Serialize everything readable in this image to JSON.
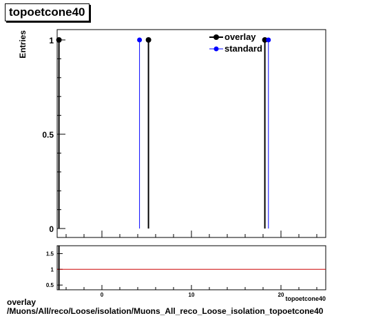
{
  "chart_data": {
    "type": "scatter",
    "title": "topoetcone40",
    "ylabel": "Entries",
    "xlabel": "topoetcone40",
    "xlim": [
      -5,
      25
    ],
    "ylim": [
      0,
      1.05
    ],
    "grid": false,
    "legend_position": "top-right",
    "series": [
      {
        "name": "overlay",
        "color": "#000000",
        "marker": "circle",
        "x": [
          -4.8,
          5.2,
          18.2
        ],
        "y": [
          1,
          1,
          1
        ]
      },
      {
        "name": "standard",
        "color": "#0000ff",
        "marker": "circle",
        "x": [
          4.2,
          18.6
        ],
        "y": [
          1,
          1
        ]
      }
    ],
    "ratio_panel": {
      "ylim": [
        0.35,
        1.75
      ],
      "reference_y": 1,
      "reference_color": "#cc0000",
      "yticks": [
        "0.5",
        "1",
        "1.5"
      ],
      "xticks": [
        "0",
        "10",
        "20"
      ]
    },
    "yticks": [
      "0",
      "0.5",
      "1"
    ]
  },
  "caption": {
    "line1": "overlay",
    "line2": "/Muons/All/reco/Loose/isolation/Muons_All_reco_Loose_isolation_topoetcone40"
  }
}
